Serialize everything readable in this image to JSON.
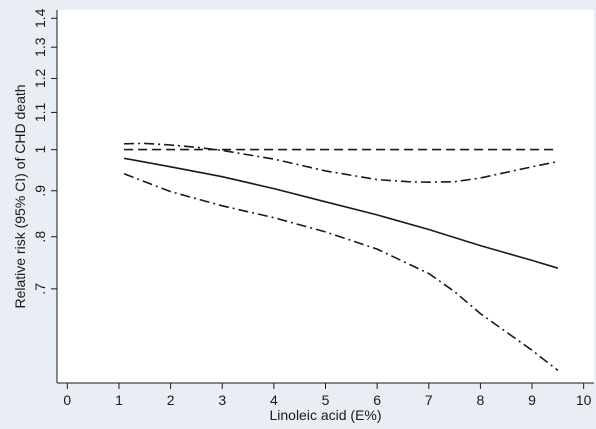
{
  "chart_data": {
    "type": "line",
    "title": "",
    "xlabel": "Linoleic acid (E%)",
    "ylabel": "Relative risk (95% CI) of CHD death",
    "xlim": [
      -0.2,
      10.2
    ],
    "ylim": [
      0.55,
      1.43
    ],
    "y_scale": "log",
    "x_ticks": [
      "0",
      "1",
      "2",
      "3",
      "4",
      "5",
      "6",
      "7",
      "8",
      "9",
      "10"
    ],
    "y_ticks": [
      ".7",
      ".8",
      ".9",
      "1",
      "1.1",
      "1.2",
      "1.3",
      "1.4"
    ],
    "grid": false,
    "legend": "none",
    "series": [
      {
        "style": "solid",
        "x": [
          1.1,
          2,
          3,
          4,
          5,
          6,
          7,
          8,
          9,
          9.5
        ],
        "y": [
          0.978,
          0.957,
          0.933,
          0.905,
          0.875,
          0.846,
          0.815,
          0.782,
          0.753,
          0.738
        ]
      },
      {
        "style": "dash-dot",
        "x": [
          1.1,
          1.5,
          2,
          2.5,
          3,
          4,
          5,
          6,
          6.6,
          7,
          7.5,
          8,
          9,
          9.5
        ],
        "y": [
          1.015,
          1.016,
          1.012,
          1.006,
          0.998,
          0.976,
          0.947,
          0.926,
          0.921,
          0.92,
          0.921,
          0.93,
          0.957,
          0.97
        ]
      },
      {
        "style": "dash-dot",
        "x": [
          1.1,
          2,
          3,
          4,
          5,
          6,
          7,
          7.5,
          8,
          9,
          9.5
        ],
        "y": [
          0.94,
          0.898,
          0.866,
          0.84,
          0.81,
          0.775,
          0.728,
          0.695,
          0.657,
          0.598,
          0.568
        ]
      },
      {
        "style": "dashed",
        "x": [
          1.1,
          9.5
        ],
        "y": [
          1.0,
          1.0
        ]
      }
    ]
  }
}
